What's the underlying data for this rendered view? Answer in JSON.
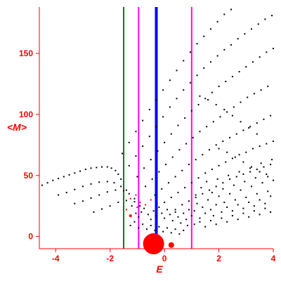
{
  "chart_data": {
    "type": "scatter",
    "title": "",
    "xlabel": "E",
    "ylabel": "<M>",
    "xlim": [
      -4.6,
      4.0
    ],
    "ylim": [
      -10,
      188
    ],
    "grid": false,
    "x_ticks": [
      -4,
      -2,
      0,
      2,
      4
    ],
    "y_ticks": [
      0,
      50,
      100,
      150
    ],
    "colors": {
      "axis": "#ff0000",
      "points": "#000000",
      "highlight": "#ff0000",
      "green_line": "#008000",
      "magenta_line": "#ff00ff",
      "blue_line": "#0000ff"
    },
    "vertical_lines": [
      {
        "x": -1.5,
        "color": "#008000",
        "style": "thin"
      },
      {
        "x": -0.95,
        "color": "#ff00ff",
        "style": "thin"
      },
      {
        "x": 1.0,
        "color": "#ff00ff",
        "style": "thin"
      },
      {
        "x": -0.3,
        "color": "#0000ff",
        "style": "thick"
      }
    ],
    "series": [
      {
        "color": "#000000",
        "points": [
          [
            -4.5,
            42
          ],
          [
            -4.3,
            44
          ],
          [
            -4.1,
            46
          ],
          [
            -3.9,
            47.5
          ],
          [
            -3.7,
            49
          ],
          [
            -3.5,
            50.5
          ],
          [
            -3.3,
            52
          ],
          [
            -3.1,
            53.5
          ],
          [
            -2.9,
            55
          ],
          [
            -2.7,
            56
          ],
          [
            -2.5,
            56.5
          ],
          [
            -2.3,
            57
          ],
          [
            -2.1,
            57
          ],
          [
            -1.95,
            56
          ],
          [
            -1.8,
            54
          ],
          [
            -1.7,
            51
          ],
          [
            -1.6,
            47
          ],
          [
            -3.9,
            34
          ],
          [
            -3.6,
            36
          ],
          [
            -3.3,
            38.5
          ],
          [
            -3.0,
            41
          ],
          [
            -2.7,
            43
          ],
          [
            -2.4,
            44.5
          ],
          [
            -2.1,
            45
          ],
          [
            -1.85,
            44
          ],
          [
            -1.6,
            41
          ],
          [
            -1.4,
            38
          ],
          [
            -3.3,
            27
          ],
          [
            -3.0,
            29
          ],
          [
            -2.7,
            31.5
          ],
          [
            -2.4,
            34
          ],
          [
            -2.1,
            36.5
          ],
          [
            -1.8,
            38
          ],
          [
            -1.5,
            37.5
          ],
          [
            -1.3,
            35
          ],
          [
            -1.1,
            31
          ],
          [
            -2.6,
            20
          ],
          [
            -2.3,
            22.5
          ],
          [
            -2.0,
            25
          ],
          [
            -1.7,
            28
          ],
          [
            -1.4,
            29.5
          ],
          [
            -1.1,
            28.5
          ],
          [
            -0.9,
            25
          ],
          [
            -1.55,
            68
          ],
          [
            -1.3,
            77
          ],
          [
            -1.05,
            86
          ],
          [
            -0.8,
            95
          ],
          [
            -0.55,
            104
          ],
          [
            -0.3,
            112
          ],
          [
            -0.05,
            120
          ],
          [
            0.2,
            128
          ],
          [
            0.45,
            136
          ],
          [
            0.7,
            144
          ],
          [
            0.95,
            151
          ],
          [
            1.2,
            158
          ],
          [
            1.45,
            164
          ],
          [
            1.7,
            170
          ],
          [
            1.95,
            176
          ],
          [
            2.2,
            182
          ],
          [
            2.45,
            186
          ],
          [
            -1.3,
            58
          ],
          [
            -1.05,
            66
          ],
          [
            -0.8,
            74
          ],
          [
            -0.55,
            82
          ],
          [
            -0.3,
            90
          ],
          [
            -0.05,
            98
          ],
          [
            0.2,
            106
          ],
          [
            0.45,
            113
          ],
          [
            0.7,
            120
          ],
          [
            0.95,
            126
          ],
          [
            1.2,
            132
          ],
          [
            1.45,
            138
          ],
          [
            1.7,
            143
          ],
          [
            1.95,
            148
          ],
          [
            2.2,
            153
          ],
          [
            2.45,
            157
          ],
          [
            2.7,
            162
          ],
          [
            2.95,
            166
          ],
          [
            3.2,
            170
          ],
          [
            3.45,
            174
          ],
          [
            3.7,
            178
          ],
          [
            3.95,
            181
          ],
          [
            -1.0,
            49
          ],
          [
            -0.75,
            56
          ],
          [
            -0.5,
            63
          ],
          [
            -0.25,
            70
          ],
          [
            0.0,
            77
          ],
          [
            0.25,
            84
          ],
          [
            0.5,
            91
          ],
          [
            0.75,
            97
          ],
          [
            1.0,
            103
          ],
          [
            1.25,
            108
          ],
          [
            1.5,
            113
          ],
          [
            1.75,
            118
          ],
          [
            2.0,
            123
          ],
          [
            2.25,
            127
          ],
          [
            2.5,
            131
          ],
          [
            2.75,
            135
          ],
          [
            3.0,
            139
          ],
          [
            3.25,
            143
          ],
          [
            3.5,
            147
          ],
          [
            3.75,
            151
          ],
          [
            4.0,
            154
          ],
          [
            -0.7,
            41
          ],
          [
            -0.45,
            47
          ],
          [
            -0.2,
            53
          ],
          [
            0.05,
            59
          ],
          [
            0.3,
            65
          ],
          [
            0.55,
            71
          ],
          [
            0.8,
            76
          ],
          [
            1.05,
            81
          ],
          [
            1.3,
            86
          ],
          [
            1.55,
            90
          ],
          [
            1.8,
            94
          ],
          [
            2.05,
            98
          ],
          [
            2.3,
            102
          ],
          [
            2.55,
            106
          ],
          [
            2.8,
            110
          ],
          [
            3.05,
            114
          ],
          [
            3.3,
            117
          ],
          [
            3.55,
            120
          ],
          [
            3.8,
            123
          ],
          [
            -0.35,
            34
          ],
          [
            -0.1,
            39
          ],
          [
            0.15,
            44
          ],
          [
            0.4,
            49
          ],
          [
            0.65,
            54
          ],
          [
            0.9,
            59
          ],
          [
            1.15,
            63
          ],
          [
            1.4,
            67
          ],
          [
            1.65,
            71
          ],
          [
            1.9,
            75
          ],
          [
            2.15,
            78
          ],
          [
            2.4,
            81
          ],
          [
            2.65,
            84
          ],
          [
            2.9,
            87
          ],
          [
            3.15,
            90
          ],
          [
            3.4,
            93
          ],
          [
            3.65,
            96
          ],
          [
            3.9,
            99
          ],
          [
            0.0,
            28
          ],
          [
            0.25,
            32
          ],
          [
            0.5,
            36
          ],
          [
            0.75,
            40
          ],
          [
            1.0,
            44
          ],
          [
            1.25,
            48
          ],
          [
            1.5,
            52
          ],
          [
            1.75,
            55
          ],
          [
            2.0,
            58
          ],
          [
            2.25,
            61
          ],
          [
            2.5,
            64
          ],
          [
            2.75,
            67
          ],
          [
            3.0,
            69
          ],
          [
            3.25,
            72
          ],
          [
            3.5,
            74
          ],
          [
            3.75,
            76
          ],
          [
            4.0,
            78
          ],
          [
            0.4,
            22
          ],
          [
            0.65,
            26
          ],
          [
            0.9,
            29
          ],
          [
            1.15,
            32
          ],
          [
            1.4,
            35
          ],
          [
            1.65,
            38
          ],
          [
            1.9,
            41
          ],
          [
            2.15,
            44
          ],
          [
            2.4,
            47
          ],
          [
            2.65,
            49
          ],
          [
            2.9,
            51
          ],
          [
            3.15,
            53
          ],
          [
            3.4,
            55
          ],
          [
            3.65,
            57
          ],
          [
            3.9,
            59
          ],
          [
            1.3,
            115
          ],
          [
            1.6,
            112
          ],
          [
            1.9,
            108
          ],
          [
            2.2,
            104
          ],
          [
            2.5,
            99
          ],
          [
            2.8,
            94
          ],
          [
            3.1,
            89
          ],
          [
            3.4,
            84
          ],
          [
            2.0,
            72
          ],
          [
            2.3,
            69
          ],
          [
            2.6,
            65
          ],
          [
            2.9,
            61
          ],
          [
            3.2,
            57
          ],
          [
            3.5,
            53
          ],
          [
            3.8,
            49
          ],
          [
            -1.2,
            25
          ],
          [
            -1.05,
            19
          ],
          [
            -0.95,
            16
          ],
          [
            -0.85,
            20
          ],
          [
            -0.75,
            23
          ],
          [
            -0.6,
            18
          ],
          [
            -0.5,
            14
          ],
          [
            -0.4,
            21
          ],
          [
            -0.3,
            17
          ],
          [
            -0.2,
            24
          ],
          [
            -0.1,
            19
          ],
          [
            0.0,
            15
          ],
          [
            0.1,
            22
          ],
          [
            0.2,
            18
          ],
          [
            0.3,
            13
          ],
          [
            0.4,
            20
          ],
          [
            0.5,
            16
          ],
          [
            0.6,
            11
          ],
          [
            0.7,
            19
          ],
          [
            0.8,
            14
          ],
          [
            0.9,
            22
          ],
          [
            1.0,
            17
          ],
          [
            1.1,
            21
          ],
          [
            1.2,
            27
          ],
          [
            1.3,
            15
          ],
          [
            1.4,
            24
          ],
          [
            1.5,
            19
          ],
          [
            1.6,
            30
          ],
          [
            1.7,
            22
          ],
          [
            1.8,
            17
          ],
          [
            1.9,
            26
          ],
          [
            2.0,
            33
          ],
          [
            2.1,
            20
          ],
          [
            2.2,
            28
          ],
          [
            2.3,
            24
          ],
          [
            2.4,
            35
          ],
          [
            2.5,
            21
          ],
          [
            2.6,
            30
          ],
          [
            2.7,
            26
          ],
          [
            2.8,
            38
          ],
          [
            2.9,
            23
          ],
          [
            3.0,
            32
          ],
          [
            3.1,
            28
          ],
          [
            3.2,
            41
          ],
          [
            3.3,
            25
          ],
          [
            3.4,
            35
          ],
          [
            3.5,
            30
          ],
          [
            3.6,
            44
          ],
          [
            3.7,
            27
          ],
          [
            3.8,
            37
          ],
          [
            3.9,
            33
          ],
          [
            4.0,
            46
          ],
          [
            1.15,
            34
          ],
          [
            1.35,
            40
          ],
          [
            1.55,
            45
          ],
          [
            1.75,
            36
          ],
          [
            1.95,
            47
          ],
          [
            2.15,
            39
          ],
          [
            2.35,
            50
          ],
          [
            2.55,
            42
          ],
          [
            2.75,
            53
          ],
          [
            2.95,
            45
          ],
          [
            3.15,
            56
          ],
          [
            3.35,
            48
          ],
          [
            3.55,
            60
          ],
          [
            3.75,
            51
          ],
          [
            3.95,
            63
          ],
          [
            1.1,
            10
          ],
          [
            1.3,
            12
          ],
          [
            1.5,
            8
          ],
          [
            1.7,
            13
          ],
          [
            1.9,
            10
          ],
          [
            2.1,
            15
          ],
          [
            2.3,
            12
          ],
          [
            2.5,
            17
          ],
          [
            2.7,
            14
          ],
          [
            2.9,
            19
          ],
          [
            3.1,
            16
          ],
          [
            3.3,
            21
          ],
          [
            3.5,
            18
          ],
          [
            3.7,
            23
          ],
          [
            3.9,
            20
          ],
          [
            -1.25,
            9
          ],
          [
            -1.1,
            12
          ],
          [
            -0.95,
            7
          ],
          [
            -0.8,
            10
          ],
          [
            -0.65,
            6
          ],
          [
            -0.5,
            9
          ],
          [
            -0.35,
            5
          ],
          [
            -0.2,
            8
          ],
          [
            -0.05,
            4
          ],
          [
            0.1,
            7
          ],
          [
            0.25,
            3
          ],
          [
            0.4,
            6
          ],
          [
            0.55,
            2
          ],
          [
            0.7,
            5
          ],
          [
            0.85,
            9
          ]
        ]
      },
      {
        "color": "#ff0000",
        "points": [
          [
            -1.25,
            31
          ],
          [
            -1.05,
            34
          ],
          [
            -0.9,
            28
          ],
          [
            -0.7,
            26
          ],
          [
            -1.0,
            24
          ],
          [
            -1.4,
            22
          ],
          [
            -0.5,
            30
          ]
        ]
      }
    ],
    "bubbles": [
      {
        "x": -0.4,
        "y": -6,
        "size": "large",
        "color": "#ff0000"
      },
      {
        "x": 0.25,
        "y": -7,
        "size": "small",
        "color": "#ff0000"
      },
      {
        "x": -1.25,
        "y": 17,
        "size": "tiny",
        "color": "#ff0000"
      }
    ]
  }
}
